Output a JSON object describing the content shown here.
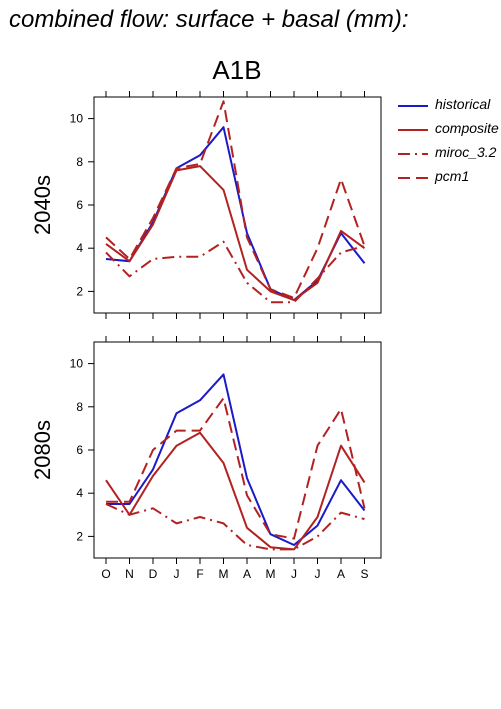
{
  "figure_title": "combined flow: surface + basal (mm):",
  "scenario": "A1B",
  "legend": [
    {
      "name": "historical",
      "color": "#1a1ac8",
      "dash": "solid"
    },
    {
      "name": "composite",
      "color": "#b22222",
      "dash": "solid"
    },
    {
      "name": "miroc_3.2",
      "color": "#b22222",
      "dash": "dashdot"
    },
    {
      "name": "pcm1",
      "color": "#b22222",
      "dash": "dashed"
    }
  ],
  "chart_data": [
    {
      "type": "line",
      "ylabel": "2040s",
      "categories": [
        "O",
        "N",
        "D",
        "J",
        "F",
        "M",
        "A",
        "M",
        "J",
        "J",
        "A",
        "S"
      ],
      "yticks": [
        2,
        4,
        6,
        8,
        10
      ],
      "ylim": [
        1,
        11
      ],
      "grid": false,
      "series": [
        {
          "name": "historical",
          "values": [
            3.5,
            3.4,
            5.2,
            7.7,
            8.3,
            9.6,
            4.7,
            2.1,
            1.6,
            2.5,
            4.7,
            3.3
          ]
        },
        {
          "name": "composite",
          "values": [
            4.2,
            3.4,
            5.1,
            7.6,
            7.8,
            6.7,
            3.0,
            2.0,
            1.6,
            2.4,
            4.8,
            4.0
          ]
        },
        {
          "name": "miroc_3.2",
          "values": [
            3.8,
            2.7,
            3.5,
            3.6,
            3.6,
            4.3,
            2.4,
            1.5,
            1.5,
            2.6,
            3.8,
            4.1
          ]
        },
        {
          "name": "pcm1",
          "values": [
            4.5,
            3.5,
            5.4,
            7.7,
            7.9,
            10.8,
            4.5,
            2.1,
            1.7,
            4.0,
            7.2,
            4.1
          ]
        }
      ]
    },
    {
      "type": "line",
      "ylabel": "2080s",
      "categories": [
        "O",
        "N",
        "D",
        "J",
        "F",
        "M",
        "A",
        "M",
        "J",
        "J",
        "A",
        "S"
      ],
      "yticks": [
        2,
        4,
        6,
        8,
        10
      ],
      "ylim": [
        1,
        11
      ],
      "grid": false,
      "series": [
        {
          "name": "historical",
          "values": [
            3.5,
            3.5,
            5.1,
            7.7,
            8.3,
            9.5,
            4.7,
            2.1,
            1.6,
            2.5,
            4.6,
            3.2
          ]
        },
        {
          "name": "composite",
          "values": [
            4.6,
            3.0,
            4.8,
            6.2,
            6.8,
            5.4,
            2.4,
            1.5,
            1.4,
            2.9,
            6.2,
            4.5
          ]
        },
        {
          "name": "miroc_3.2",
          "values": [
            3.5,
            3.0,
            3.3,
            2.6,
            2.9,
            2.6,
            1.6,
            1.4,
            1.4,
            2.0,
            3.1,
            2.8
          ]
        },
        {
          "name": "pcm1",
          "values": [
            3.6,
            3.6,
            6.0,
            6.9,
            6.9,
            8.4,
            3.9,
            2.1,
            1.9,
            6.2,
            7.9,
            3.3
          ]
        }
      ]
    }
  ]
}
